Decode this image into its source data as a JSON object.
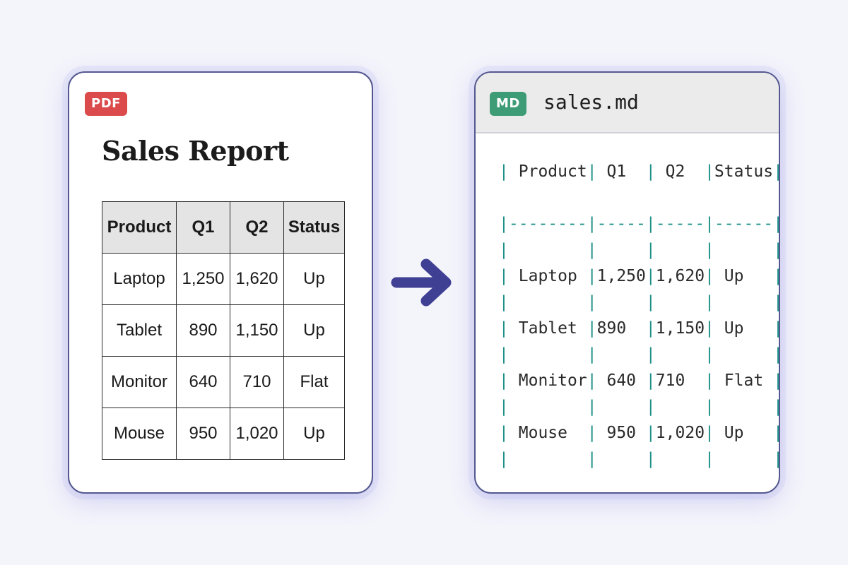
{
  "pdf": {
    "badge": "PDF",
    "title": "Sales Report",
    "columns": [
      "Product",
      "Q1",
      "Q2",
      "Status"
    ],
    "rows": [
      [
        "Laptop",
        "1,250",
        "1,620",
        "Up"
      ],
      [
        "Tablet",
        "890",
        "1,150",
        "Up"
      ],
      [
        "Monitor",
        "640",
        "710",
        "Flat"
      ],
      [
        "Mouse",
        "950",
        "1,020",
        "Up"
      ]
    ]
  },
  "md": {
    "badge": "MD",
    "filename": "sales.md",
    "lines": [
      "| Product| Q1  | Q2  |Status|",
      "",
      "|--------|-----|-----|------|",
      "|        |     |     |      |",
      "| Laptop |1,250|1,620| Up   |",
      "|        |     |     |      |",
      "| Tablet |890  |1,150| Up   |",
      "|        |     |     |      |",
      "| Monitor| 640 |710  | Flat |",
      "|        |     |     |      |",
      "| Mouse  | 950 |1,020| Up   |",
      "|        |     |     |      |"
    ]
  },
  "colors": {
    "pdf_badge": "#db4b4b",
    "md_badge": "#3d9c76",
    "arrow": "#3f3f94",
    "markdown_pipes": "#1f9088"
  },
  "icons": {
    "arrow": "arrow-right-icon"
  }
}
